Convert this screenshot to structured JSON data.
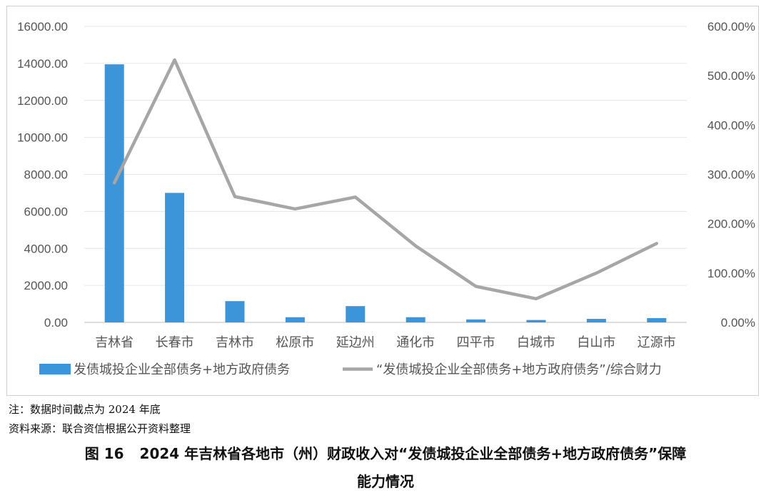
{
  "chart_data": {
    "type": "bar",
    "categories": [
      "吉林省",
      "长春市",
      "吉林市",
      "松原市",
      "延边州",
      "通化市",
      "四平市",
      "白城市",
      "白山市",
      "辽源市"
    ],
    "series": [
      {
        "name": "发债城投企业全部债务+地方政府债务",
        "type": "bar",
        "axis": "left",
        "color": "#3d95d9",
        "values": [
          13950,
          7000,
          1150,
          280,
          880,
          280,
          160,
          130,
          190,
          230
        ]
      },
      {
        "name": "“发债城投企业全部债务+地方政府债务”/综合财力",
        "type": "line",
        "axis": "right",
        "color": "#a6a6a6",
        "values": [
          283,
          532,
          255,
          230,
          254,
          155,
          73,
          48,
          100,
          160
        ]
      }
    ],
    "y_left": {
      "min": 0,
      "max": 16000,
      "step": 2000,
      "tick_labels": [
        "0.00",
        "2000.00",
        "4000.00",
        "6000.00",
        "8000.00",
        "10000.00",
        "12000.00",
        "14000.00",
        "16000.00"
      ]
    },
    "y_right": {
      "min": 0,
      "max": 600,
      "step": 100,
      "unit": "%",
      "tick_labels": [
        "0.00%",
        "100.00%",
        "200.00%",
        "300.00%",
        "400.00%",
        "500.00%",
        "600.00%"
      ]
    },
    "grid": true,
    "legend_position": "bottom"
  },
  "notes": {
    "note": "注：数据时间截点为 2024 年底",
    "source": "资料来源：联合资信根据公开资料整理"
  },
  "caption": {
    "figure_number": "图 16",
    "line1": "2024 年吉林省各地市（州）财政收入对“发债城投企业全部债务+地方政府债务”保障",
    "line2": "能力情况"
  }
}
